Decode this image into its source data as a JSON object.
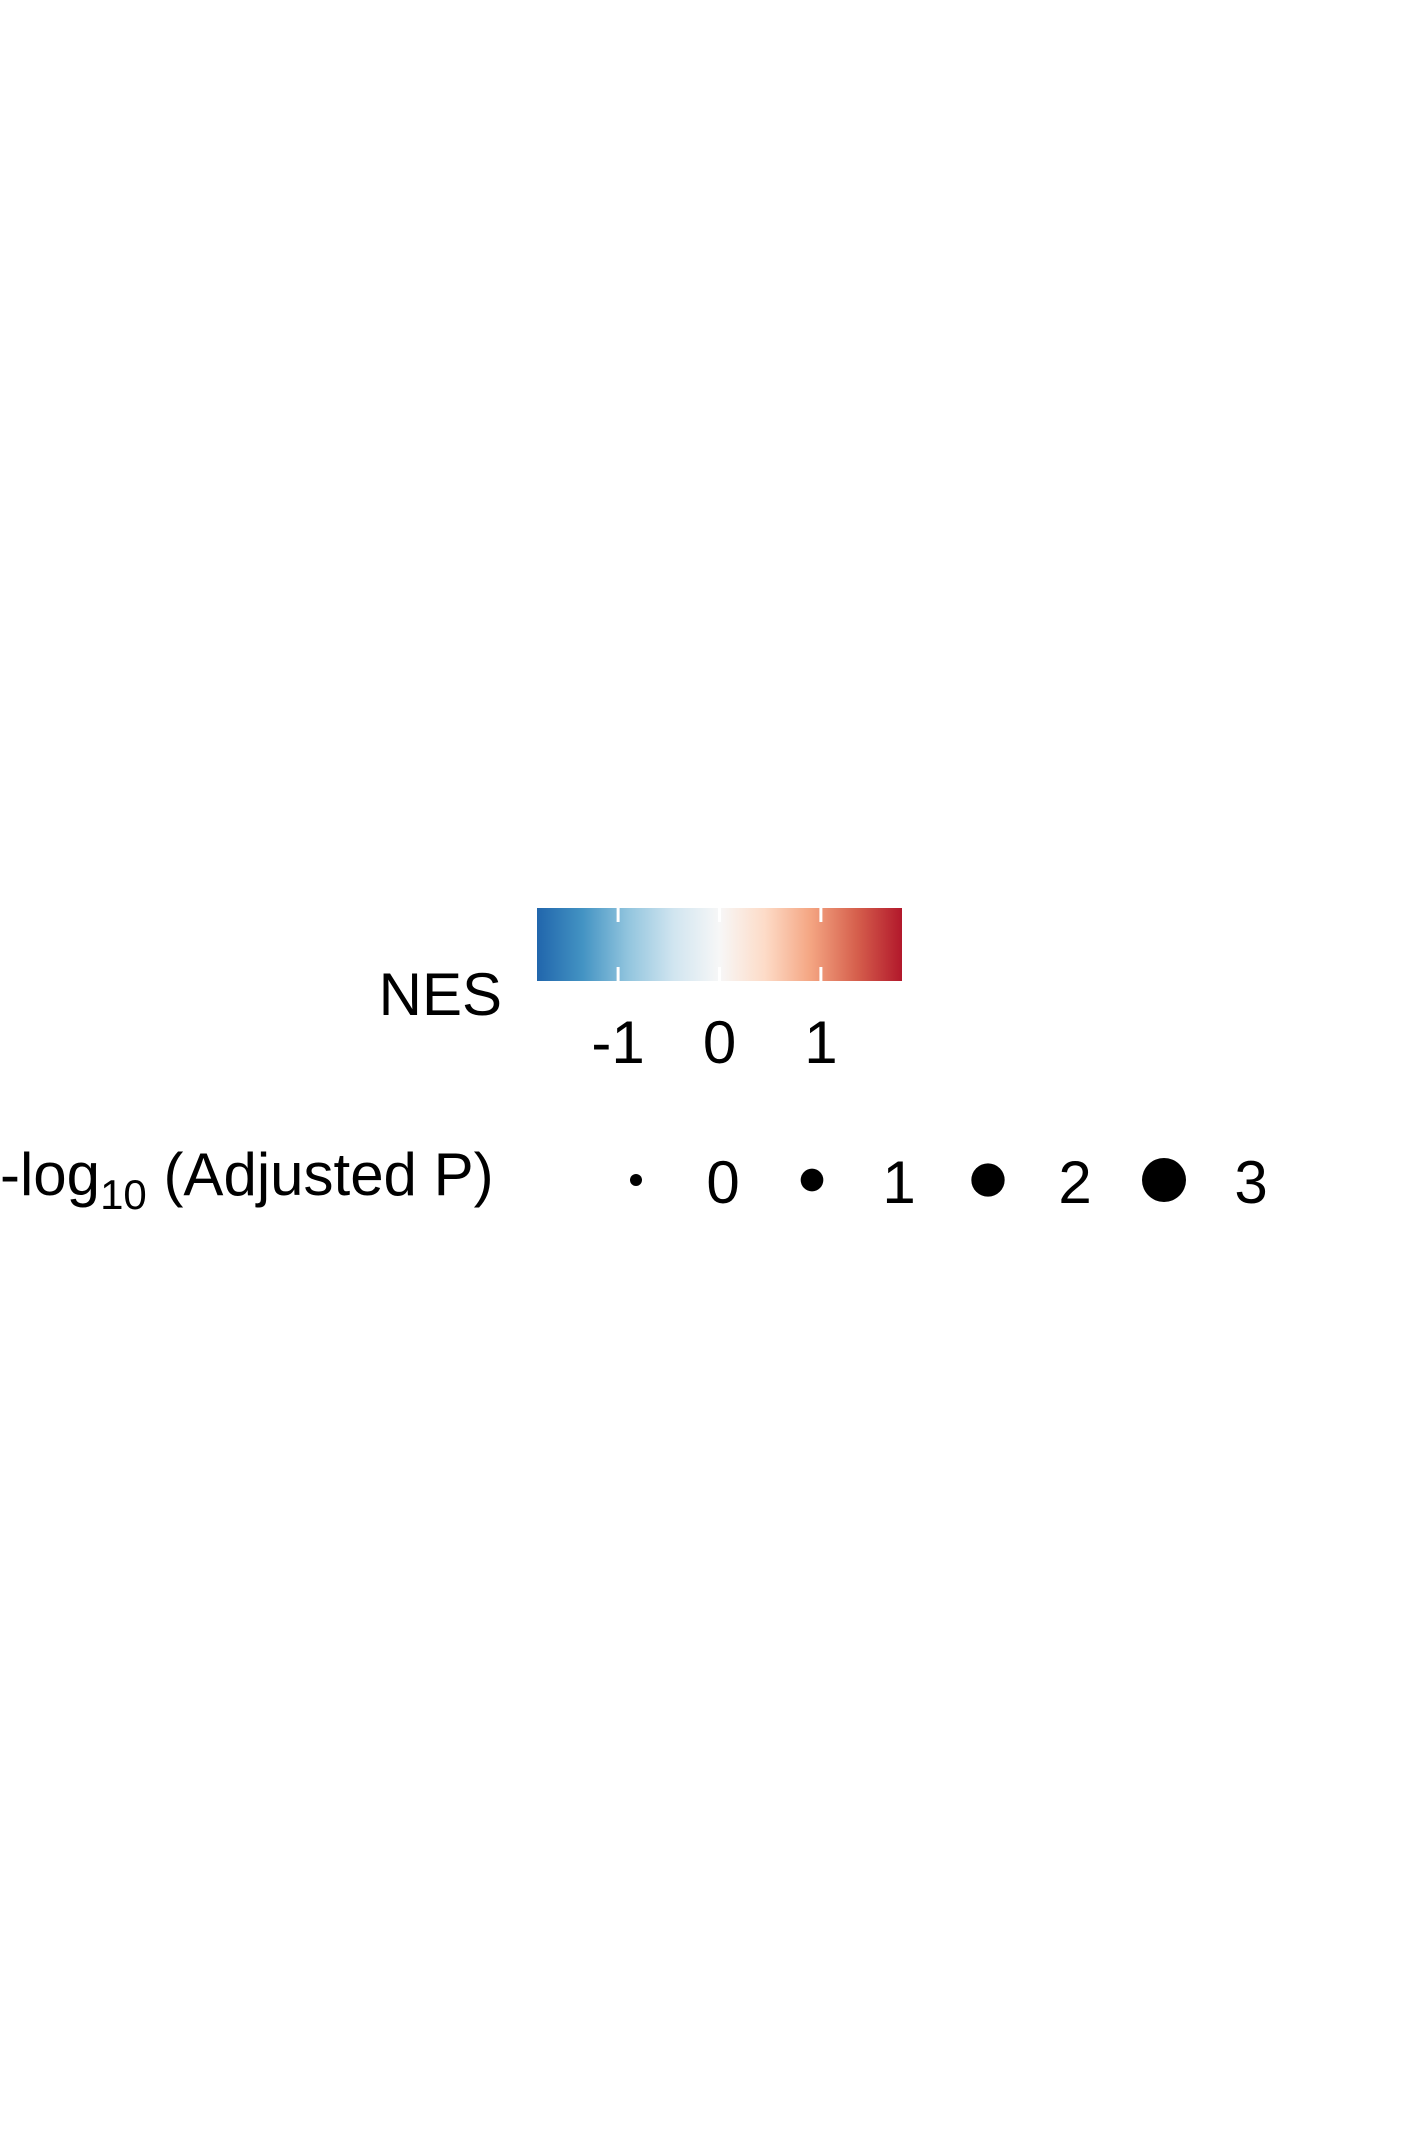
{
  "chart_data": {
    "type": "legend",
    "color_legend": {
      "title": "NES",
      "ticks": [
        -1,
        0,
        1
      ],
      "tick_labels": [
        "-1",
        "0",
        "1"
      ],
      "range": [
        -1.8,
        1.8
      ],
      "colors": [
        "#2166ac",
        "#4393c3",
        "#92c5de",
        "#d1e5f0",
        "#f7f7f7",
        "#fddbc7",
        "#f4a582",
        "#d6604d",
        "#b2182b"
      ]
    },
    "size_legend": {
      "title_prefix": "-log",
      "title_subscript": "10",
      "title_suffix": " (Adjusted P)",
      "values": [
        0,
        1,
        2,
        3
      ],
      "labels": [
        "0",
        "1",
        "2",
        "3"
      ],
      "marker_color": "#000000"
    }
  }
}
